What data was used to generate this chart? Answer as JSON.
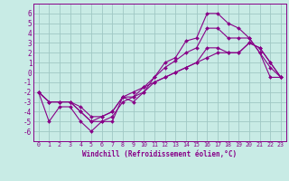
{
  "x": [
    0,
    1,
    2,
    3,
    4,
    5,
    6,
    7,
    8,
    9,
    10,
    11,
    12,
    13,
    14,
    15,
    16,
    17,
    18,
    19,
    20,
    21,
    22,
    23
  ],
  "line1": [
    -2,
    -5,
    -3.5,
    -3.5,
    -5,
    -6,
    -5,
    -5,
    -2.5,
    -3,
    -2,
    -0.5,
    1,
    1.5,
    3.2,
    3.5,
    6,
    6,
    5,
    4.5,
    3.5,
    2,
    -0.5,
    -0.5
  ],
  "line2": [
    -2,
    -3,
    -3,
    -3,
    -4,
    -5,
    -5,
    -4.5,
    -3,
    -2.5,
    -1.5,
    -0.5,
    0.5,
    1.2,
    2,
    2.5,
    4.5,
    4.5,
    3.5,
    3.5,
    3.5,
    2,
    0.5,
    -0.5
  ],
  "line3": [
    -2,
    -3,
    -3,
    -3,
    -4,
    -5,
    -4.5,
    -4,
    -2.5,
    -2.5,
    -2,
    -1,
    -0.5,
    0,
    0.5,
    1,
    2.5,
    2.5,
    2,
    2,
    3,
    2.5,
    1,
    -0.5
  ],
  "line4": [
    -2,
    -3,
    -3,
    -3,
    -3.5,
    -4.5,
    -4.5,
    -4,
    -2.5,
    -2,
    -1.5,
    -1,
    -0.5,
    0,
    0.5,
    1,
    1.5,
    2,
    2,
    2,
    3,
    2.5,
    1,
    -0.5
  ],
  "bg_color": "#c8ebe5",
  "grid_color": "#a0c8c4",
  "line_color": "#880088",
  "xlabel": "Windchill (Refroidissement éolien,°C)",
  "ylim": [
    -7,
    7
  ],
  "xlim": [
    -0.5,
    23.5
  ],
  "yticks": [
    -6,
    -5,
    -4,
    -3,
    -2,
    -1,
    0,
    1,
    2,
    3,
    4,
    5,
    6
  ],
  "xticks": [
    0,
    1,
    2,
    3,
    4,
    5,
    6,
    7,
    8,
    9,
    10,
    11,
    12,
    13,
    14,
    15,
    16,
    17,
    18,
    19,
    20,
    21,
    22,
    23
  ]
}
